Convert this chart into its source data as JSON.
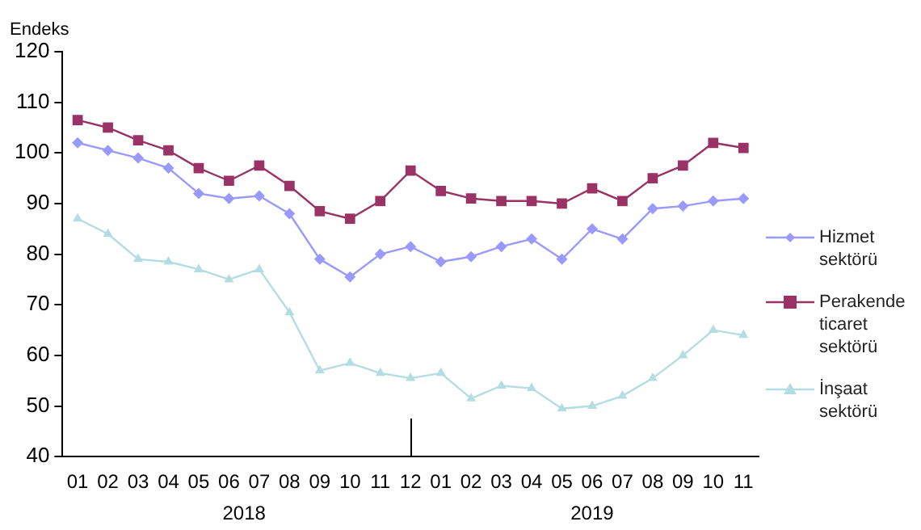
{
  "chart_data": {
    "type": "line",
    "ylabel": "Endeks",
    "categories": [
      "01",
      "02",
      "03",
      "04",
      "05",
      "06",
      "07",
      "08",
      "09",
      "10",
      "11",
      "12",
      "01",
      "02",
      "03",
      "04",
      "05",
      "06",
      "07",
      "08",
      "09",
      "10",
      "11"
    ],
    "series": [
      {
        "name": "Hizmet sektörü",
        "color": "#9999ff",
        "marker": "diamond",
        "values": [
          102,
          100.5,
          99,
          97,
          92,
          91,
          91.5,
          88,
          79,
          75.5,
          80,
          81.5,
          78.5,
          79.5,
          81.5,
          83,
          79,
          85,
          83,
          89,
          89.5,
          90.5,
          91
        ]
      },
      {
        "name": "Perakende ticaret sektörü",
        "color": "#993366",
        "marker": "square",
        "values": [
          106.5,
          105,
          102.5,
          100.5,
          97,
          94.5,
          97.5,
          93.5,
          88.5,
          87,
          90.5,
          96.5,
          92.5,
          91,
          90.5,
          90.5,
          90,
          93,
          90.5,
          95,
          97.5,
          102,
          101
        ]
      },
      {
        "name": "İnşaat sektörü",
        "color": "#b3dde0",
        "marker": "triangle",
        "values": [
          87,
          84,
          79,
          78.5,
          77,
          75,
          77,
          68.5,
          57,
          58.5,
          56.5,
          55.5,
          56.5,
          51.5,
          54,
          53.5,
          49.5,
          50,
          52,
          55.5,
          60,
          65,
          64
        ]
      }
    ],
    "annotations": [
      "2018",
      "2019"
    ],
    "ylim": [
      40,
      120
    ],
    "yticks": [
      40,
      50,
      60,
      70,
      80,
      90,
      100,
      110,
      120
    ],
    "grid": false,
    "legend": "right",
    "line_style": "solid"
  }
}
